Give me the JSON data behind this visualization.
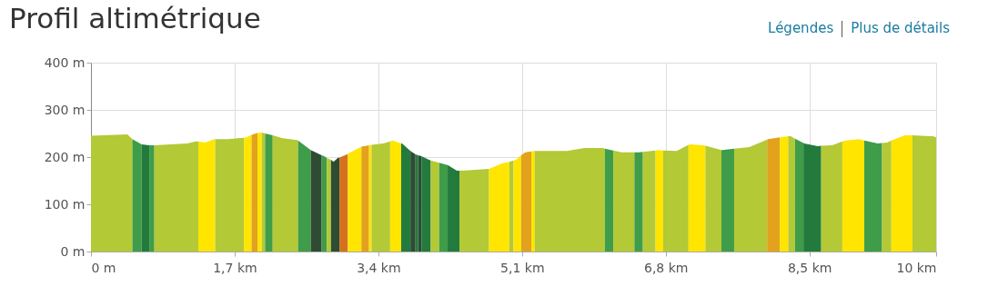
{
  "chart_data": {
    "type": "area",
    "title": "Profil altimétrique",
    "annotations": [
      "Légendes",
      "Plus de détails"
    ],
    "xlim": [
      0,
      10
    ],
    "ylim": [
      0,
      400
    ],
    "xticks": [
      {
        "value": 0,
        "label": "0 m"
      },
      {
        "value": 1.7,
        "label": "1,7 km"
      },
      {
        "value": 3.4,
        "label": "3,4 km"
      },
      {
        "value": 5.1,
        "label": "5,1 km"
      },
      {
        "value": 6.8,
        "label": "6,8 km"
      },
      {
        "value": 8.5,
        "label": "8,5 km"
      },
      {
        "value": 10,
        "label": "10 km"
      }
    ],
    "yticks": [
      {
        "value": 0,
        "label": "0 m"
      },
      {
        "value": 100,
        "label": "100 m"
      },
      {
        "value": 200,
        "label": "200 m"
      },
      {
        "value": 300,
        "label": "300 m"
      },
      {
        "value": 400,
        "label": "400 m"
      }
    ],
    "grid": true,
    "series": [
      {
        "color": "#b3c935",
        "x": [
          0,
          0.43,
          0.49
        ],
        "values": [
          245,
          248,
          238
        ]
      },
      {
        "color": "#3f9c48",
        "x": [
          0.49,
          0.6
        ],
        "values": [
          238,
          227
        ]
      },
      {
        "color": "#237a3d",
        "x": [
          0.6,
          0.69
        ],
        "values": [
          227,
          225
        ]
      },
      {
        "color": "#3f9c48",
        "x": [
          0.69,
          0.75
        ],
        "values": [
          225,
          225
        ]
      },
      {
        "color": "#b3c935",
        "x": [
          0.75,
          1.14,
          1.24,
          1.27
        ],
        "values": [
          225,
          229,
          233,
          233
        ]
      },
      {
        "color": "#ffe500",
        "x": [
          1.27,
          1.35,
          1.46,
          1.47
        ],
        "values": [
          233,
          231,
          238,
          238
        ]
      },
      {
        "color": "#b3c935",
        "x": [
          1.47,
          1.62,
          1.73,
          1.81
        ],
        "values": [
          238,
          238,
          240,
          241
        ]
      },
      {
        "color": "#ffe500",
        "x": [
          1.81,
          1.84,
          1.9
        ],
        "values": [
          241,
          242,
          247
        ]
      },
      {
        "color": "#e2a21e",
        "x": [
          1.9,
          1.95,
          1.97
        ],
        "values": [
          247,
          250,
          251
        ]
      },
      {
        "color": "#ffe500",
        "x": [
          1.97,
          2.02
        ],
        "values": [
          251,
          252
        ]
      },
      {
        "color": "#b3c935",
        "x": [
          2.02,
          2.06
        ],
        "values": [
          252,
          250
        ]
      },
      {
        "color": "#3f9c48",
        "x": [
          2.06,
          2.15
        ],
        "values": [
          250,
          246
        ]
      },
      {
        "color": "#b3c935",
        "x": [
          2.15,
          2.27,
          2.44,
          2.45
        ],
        "values": [
          246,
          240,
          236,
          235
        ]
      },
      {
        "color": "#3f9c48",
        "x": [
          2.45,
          2.6
        ],
        "values": [
          235,
          215
        ]
      },
      {
        "color": "#2e4b33",
        "x": [
          2.6,
          2.73
        ],
        "values": [
          215,
          204
        ]
      },
      {
        "color": "#3f9c48",
        "x": [
          2.73,
          2.76,
          2.79
        ],
        "values": [
          204,
          202,
          198
        ]
      },
      {
        "color": "#b3c935",
        "x": [
          2.79,
          2.84
        ],
        "values": [
          198,
          194
        ]
      },
      {
        "color": "#2e4b33",
        "x": [
          2.84,
          2.87,
          2.92,
          2.94
        ],
        "values": [
          194,
          190,
          198,
          199
        ]
      },
      {
        "color": "#d4711e",
        "x": [
          2.94,
          3.03,
          3.04
        ],
        "values": [
          199,
          206,
          207
        ]
      },
      {
        "color": "#ffe500",
        "x": [
          3.04,
          3.19,
          3.2
        ],
        "values": [
          207,
          221,
          222
        ]
      },
      {
        "color": "#e2a21e",
        "x": [
          3.2,
          3.29
        ],
        "values": [
          222,
          225
        ]
      },
      {
        "color": "#ffe500",
        "x": [
          3.29,
          3.32
        ],
        "values": [
          225,
          226
        ]
      },
      {
        "color": "#b3c935",
        "x": [
          3.32,
          3.46,
          3.54
        ],
        "values": [
          226,
          229,
          233
        ]
      },
      {
        "color": "#ffe500",
        "x": [
          3.54,
          3.57,
          3.67
        ],
        "values": [
          233,
          235,
          229
        ]
      },
      {
        "color": "#237a3d",
        "x": [
          3.67,
          3.68,
          3.78
        ],
        "values": [
          229,
          229,
          213
        ]
      },
      {
        "color": "#2e4b33",
        "x": [
          3.78,
          3.84
        ],
        "values": [
          213,
          206
        ]
      },
      {
        "color": "#237a3d",
        "x": [
          3.84,
          3.87
        ],
        "values": [
          206,
          204
        ]
      },
      {
        "color": "#2e4b33",
        "x": [
          3.87,
          3.91
        ],
        "values": [
          204,
          202
        ]
      },
      {
        "color": "#237a3d",
        "x": [
          3.91,
          4.0,
          4.02
        ],
        "values": [
          202,
          194,
          193
        ]
      },
      {
        "color": "#b3c935",
        "x": [
          4.02,
          4.12
        ],
        "values": [
          193,
          188
        ]
      },
      {
        "color": "#3f9c48",
        "x": [
          4.12,
          4.22
        ],
        "values": [
          188,
          183
        ]
      },
      {
        "color": "#237a3d",
        "x": [
          4.22,
          4.33,
          4.36
        ],
        "values": [
          183,
          171,
          171
        ]
      },
      {
        "color": "#b3c935",
        "x": [
          4.36,
          4.55,
          4.71
        ],
        "values": [
          171,
          173,
          175
        ]
      },
      {
        "color": "#ffe500",
        "x": [
          4.71,
          4.87,
          4.95
        ],
        "values": [
          175,
          187,
          190
        ]
      },
      {
        "color": "#b3c935",
        "x": [
          4.95,
          5.0
        ],
        "values": [
          190,
          193
        ]
      },
      {
        "color": "#ffe500",
        "x": [
          5.0,
          5.03,
          5.09
        ],
        "values": [
          193,
          194,
          204
        ]
      },
      {
        "color": "#e2a21e",
        "x": [
          5.09,
          5.14,
          5.21
        ],
        "values": [
          204,
          210,
          212
        ]
      },
      {
        "color": "#ffe500",
        "x": [
          5.21,
          5.25
        ],
        "values": [
          212,
          213
        ]
      },
      {
        "color": "#b3c935",
        "x": [
          5.25,
          5.63,
          5.84,
          6.06,
          6.08
        ],
        "values": [
          213,
          213,
          219,
          219,
          218
        ]
      },
      {
        "color": "#3f9c48",
        "x": [
          6.08,
          6.18
        ],
        "values": [
          218,
          214
        ]
      },
      {
        "color": "#b3c935",
        "x": [
          6.18,
          6.28,
          6.43
        ],
        "values": [
          214,
          210,
          210
        ]
      },
      {
        "color": "#3f9c48",
        "x": [
          6.43,
          6.49,
          6.53
        ],
        "values": [
          210,
          210,
          211
        ]
      },
      {
        "color": "#b3c935",
        "x": [
          6.53,
          6.68
        ],
        "values": [
          211,
          214
        ]
      },
      {
        "color": "#ffe500",
        "x": [
          6.68,
          6.71,
          6.77
        ],
        "values": [
          214,
          215,
          214
        ]
      },
      {
        "color": "#b3c935",
        "x": [
          6.77,
          6.93,
          7.07
        ],
        "values": [
          214,
          213,
          226
        ]
      },
      {
        "color": "#ffe500",
        "x": [
          7.07,
          7.09,
          7.25,
          7.27
        ],
        "values": [
          226,
          227,
          225,
          224
        ]
      },
      {
        "color": "#b3c935",
        "x": [
          7.27,
          7.46
        ],
        "values": [
          224,
          215
        ]
      },
      {
        "color": "#3f9c48",
        "x": [
          7.46,
          7.47,
          7.61
        ],
        "values": [
          215,
          215,
          218
        ]
      },
      {
        "color": "#b3c935",
        "x": [
          7.61,
          7.79,
          8.0
        ],
        "values": [
          218,
          221,
          237
        ]
      },
      {
        "color": "#e2a21e",
        "x": [
          8.0,
          8.01,
          8.15
        ],
        "values": [
          237,
          238,
          242
        ]
      },
      {
        "color": "#ffe500",
        "x": [
          8.15,
          8.25
        ],
        "values": [
          242,
          244
        ]
      },
      {
        "color": "#b3c935",
        "x": [
          8.25,
          8.28,
          8.33
        ],
        "values": [
          244,
          244,
          239
        ]
      },
      {
        "color": "#3f9c48",
        "x": [
          8.33,
          8.43
        ],
        "values": [
          239,
          230
        ]
      },
      {
        "color": "#237a3d",
        "x": [
          8.43,
          8.44,
          8.6,
          8.64
        ],
        "values": [
          230,
          229,
          223,
          224
        ]
      },
      {
        "color": "#b3c935",
        "x": [
          8.64,
          8.77,
          8.89
        ],
        "values": [
          224,
          225,
          233
        ]
      },
      {
        "color": "#ffe500",
        "x": [
          8.89,
          8.93,
          9.09,
          9.15
        ],
        "values": [
          233,
          235,
          238,
          235
        ]
      },
      {
        "color": "#3f9c48",
        "x": [
          9.15,
          9.31,
          9.36
        ],
        "values": [
          235,
          229,
          230
        ]
      },
      {
        "color": "#b3c935",
        "x": [
          9.36,
          9.42,
          9.47
        ],
        "values": [
          230,
          231,
          235
        ]
      },
      {
        "color": "#ffe500",
        "x": [
          9.47,
          9.63,
          9.72
        ],
        "values": [
          235,
          246,
          246
        ]
      },
      {
        "color": "#b3c935",
        "x": [
          9.72,
          9.96,
          10
        ],
        "values": [
          246,
          244,
          242
        ]
      }
    ]
  }
}
